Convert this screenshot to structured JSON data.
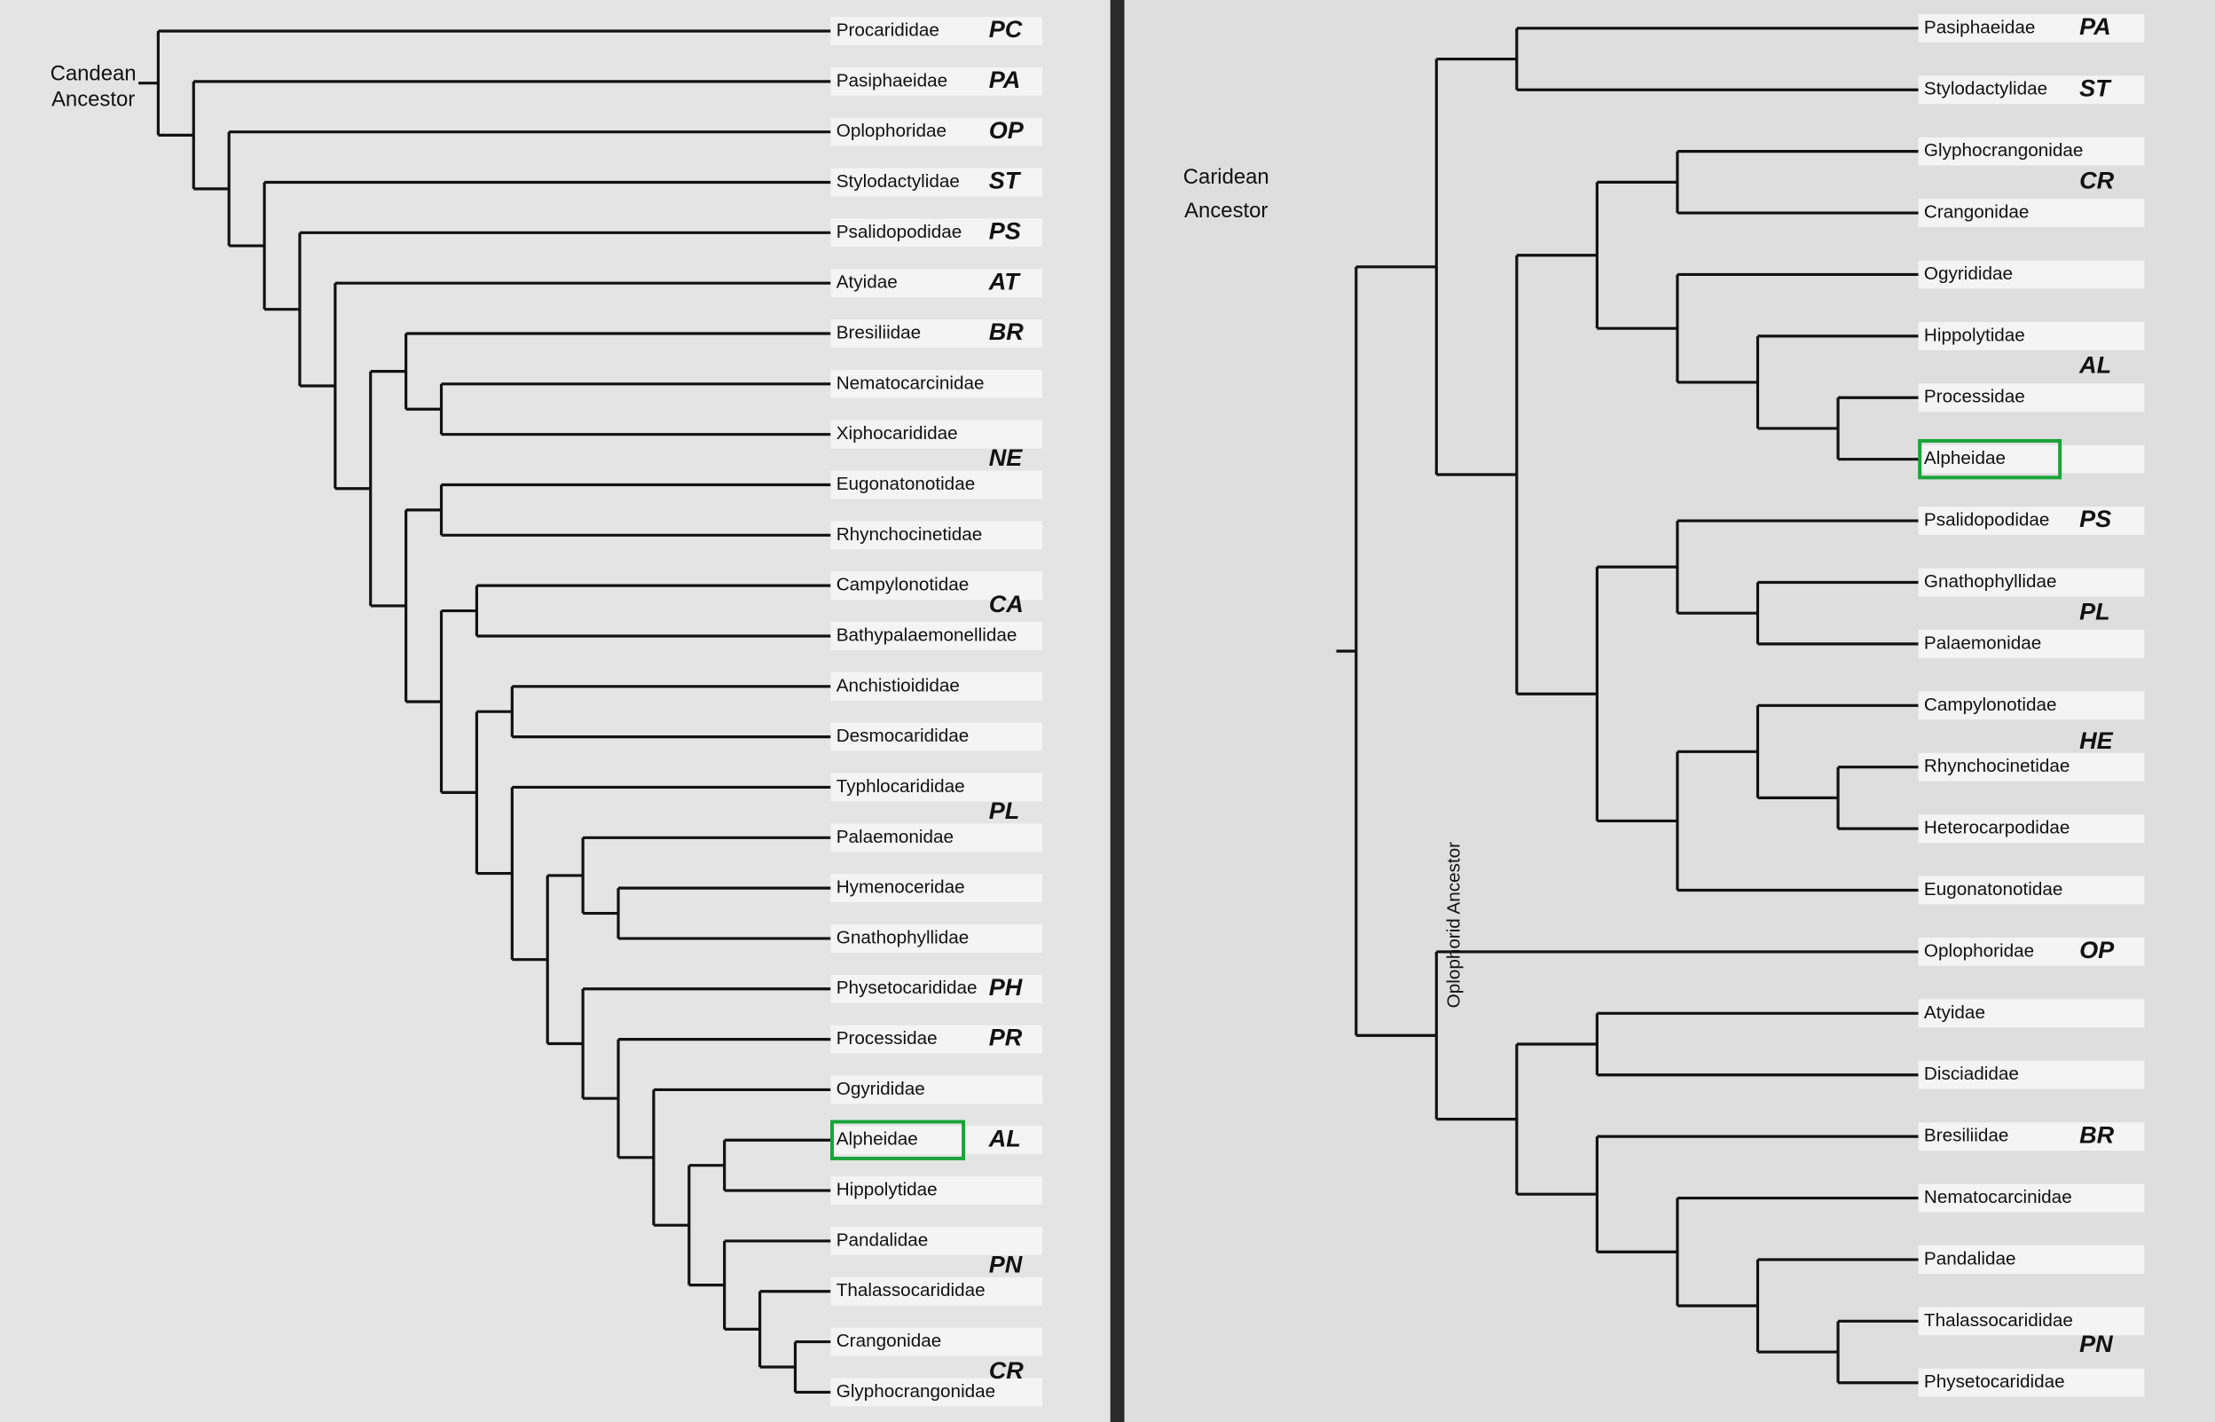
{
  "left_tree": {
    "root_label": [
      "Candean",
      "Ancestor"
    ],
    "taxa": [
      {
        "name": "Procarididae",
        "code": "PC"
      },
      {
        "name": "Pasiphaeidae",
        "code": "PA"
      },
      {
        "name": "Oplophoridae",
        "code": "OP"
      },
      {
        "name": "Stylodactylidae",
        "code": "ST"
      },
      {
        "name": "Psalidopodidae",
        "code": "PS"
      },
      {
        "name": "Atyidae",
        "code": "AT"
      },
      {
        "name": "Bresiliidae",
        "code": "BR"
      },
      {
        "name": "Nematocarcinidae"
      },
      {
        "name": "Xiphocarididae"
      },
      {
        "name": "Eugonatonotidae",
        "code": "NE"
      },
      {
        "name": "Rhynchocinetidae"
      },
      {
        "name": "Campylonotidae",
        "code": "CA"
      },
      {
        "name": "Bathypalaemonellidae"
      },
      {
        "name": "Anchistioididae"
      },
      {
        "name": "Desmocarididae"
      },
      {
        "name": "Typhlocarididae"
      },
      {
        "name": "Palaemonidae",
        "code": "PL"
      },
      {
        "name": "Hymenoceridae"
      },
      {
        "name": "Gnathophyllidae"
      },
      {
        "name": "Physetocarididae",
        "code": "PH"
      },
      {
        "name": "Processidae",
        "code": "PR"
      },
      {
        "name": "Ogyrididae"
      },
      {
        "name": "Alpheidae",
        "code": "AL"
      },
      {
        "name": "Hippolytidae"
      },
      {
        "name": "Pandalidae"
      },
      {
        "name": "Thalassocarididae",
        "code": "PN"
      },
      {
        "name": "Crangonidae"
      },
      {
        "name": "Glyphocrangonidae",
        "code": "CR"
      }
    ]
  },
  "right_tree": {
    "root_label": [
      "Caridean",
      "Ancestor"
    ],
    "subgroup_label": "Oplophorid Ancestor",
    "taxa": [
      {
        "name": "Pasiphaeidae",
        "code": "PA"
      },
      {
        "name": "Stylodactylidae",
        "code": "ST"
      },
      {
        "name": "Glyphocrangonidae"
      },
      {
        "name": "Crangonidae",
        "code": "CR"
      },
      {
        "name": "Ogyrididae"
      },
      {
        "name": "Hippolytidae"
      },
      {
        "name": "Processidae",
        "code": "AL"
      },
      {
        "name": "Alpheidae"
      },
      {
        "name": "Psalidopodidae",
        "code": "PS"
      },
      {
        "name": "Gnathophyllidae"
      },
      {
        "name": "Palaemonidae",
        "code": "PL"
      },
      {
        "name": "Campylonotidae"
      },
      {
        "name": "Rhynchocinetidae",
        "code": "HE"
      },
      {
        "name": "Heterocarpodidae"
      },
      {
        "name": "Eugonatonotidae"
      },
      {
        "name": "Oplophoridae",
        "code": "OP"
      },
      {
        "name": "Atyidae"
      },
      {
        "name": "Disciadidae"
      },
      {
        "name": "Bresiliidae",
        "code": "BR"
      },
      {
        "name": "Nematocarcinidae"
      },
      {
        "name": "Pandalidae"
      },
      {
        "name": "Thalassocarididae",
        "code": "PN"
      },
      {
        "name": "Physetocarididae"
      }
    ]
  }
}
